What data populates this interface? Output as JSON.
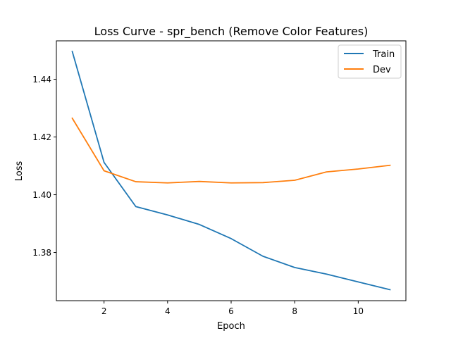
{
  "chart_data": {
    "type": "line",
    "title": "Loss Curve - spr_bench (Remove Color Features)",
    "xlabel": "Epoch",
    "ylabel": "Loss",
    "xlim": [
      0.5,
      11.5
    ],
    "ylim": [
      1.3633,
      1.4533
    ],
    "xticks": [
      2,
      4,
      6,
      8,
      10
    ],
    "xtick_labels": [
      "2",
      "4",
      "6",
      "8",
      "10"
    ],
    "yticks": [
      1.38,
      1.4,
      1.42,
      1.44
    ],
    "ytick_labels": [
      "1.38",
      "1.40",
      "1.42",
      "1.44"
    ],
    "grid": false,
    "legend_position": "top-right",
    "x": [
      1,
      2,
      3,
      4,
      5,
      6,
      7,
      8,
      9,
      10,
      11
    ],
    "series": [
      {
        "name": "Train",
        "color": "#1f77b4",
        "values": [
          1.4496,
          1.4112,
          1.3959,
          1.393,
          1.3897,
          1.3848,
          1.3787,
          1.3748,
          1.3725,
          1.3698,
          1.3671
        ]
      },
      {
        "name": "Dev",
        "color": "#ff7f0e",
        "values": [
          1.4265,
          1.4083,
          1.4045,
          1.4041,
          1.4046,
          1.4041,
          1.4042,
          1.405,
          1.4079,
          1.4089,
          1.4102
        ]
      }
    ]
  }
}
